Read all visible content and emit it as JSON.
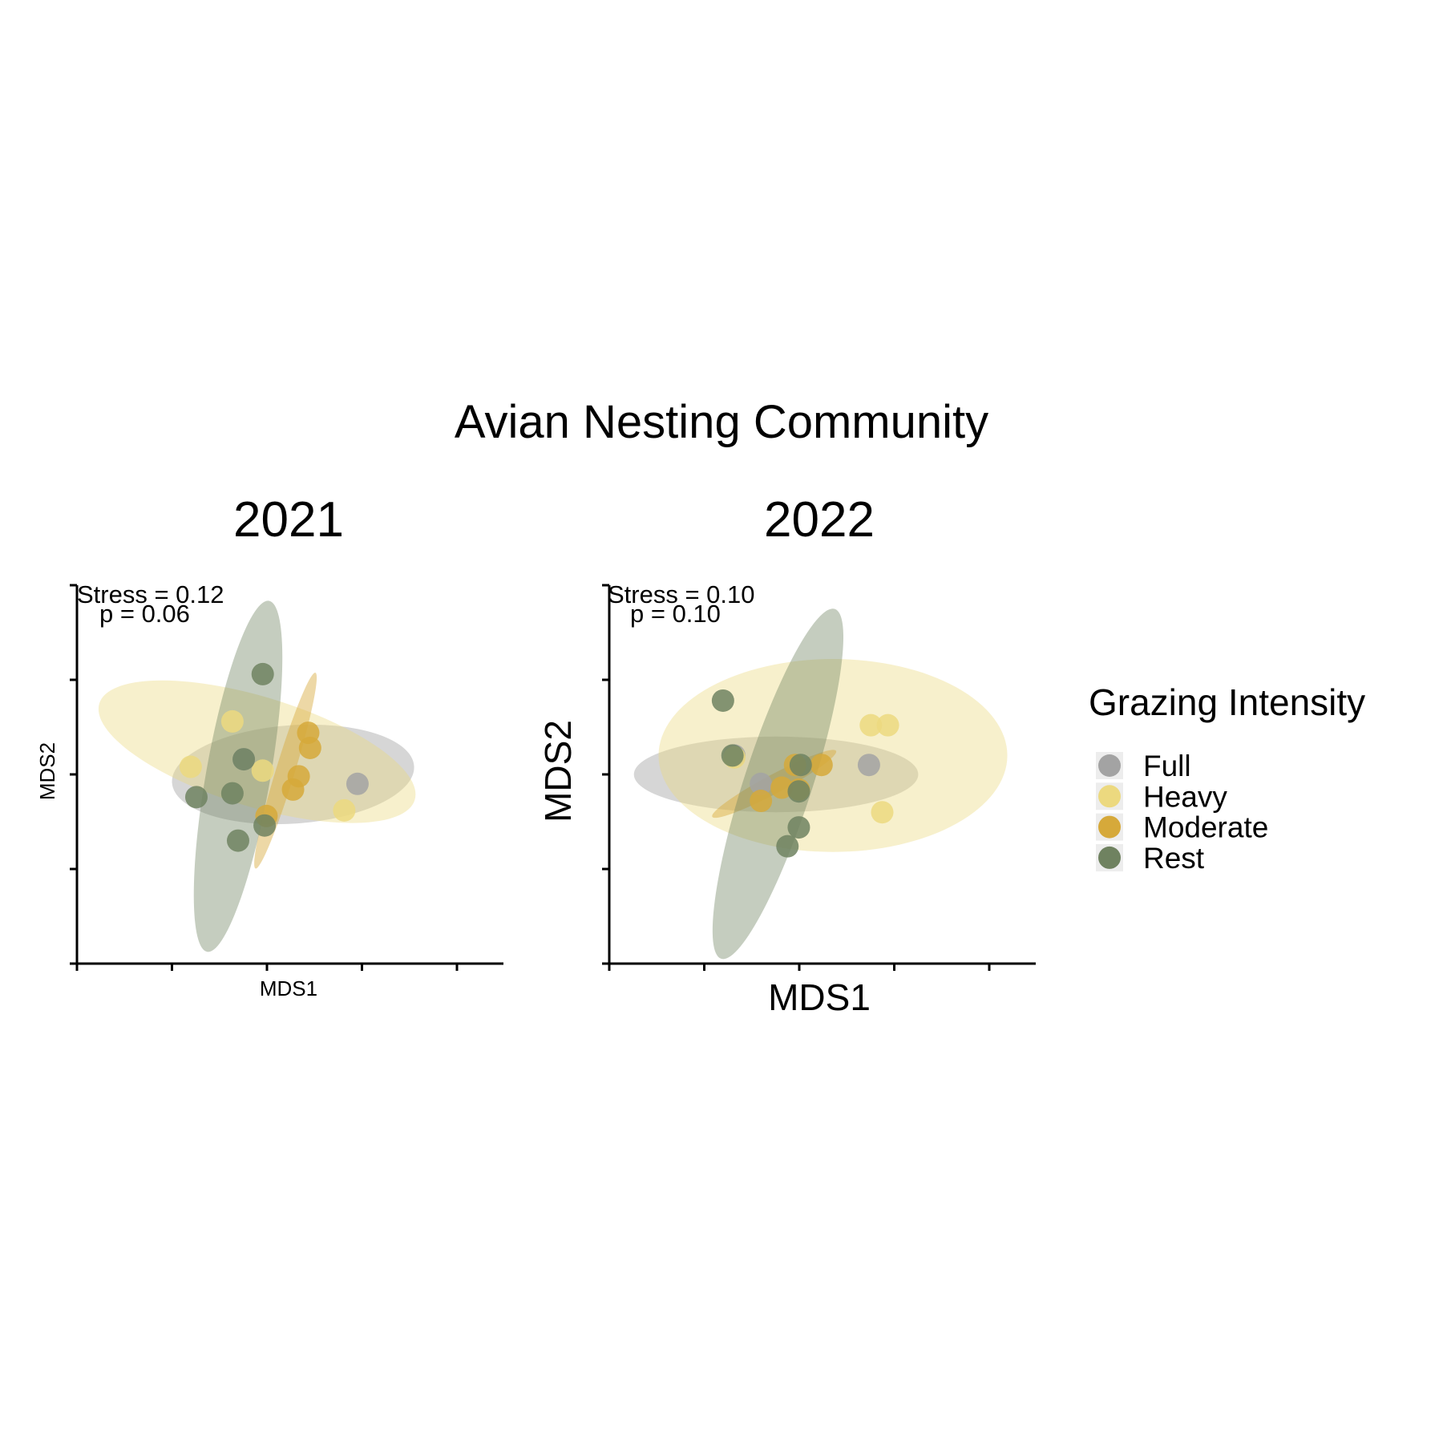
{
  "title": "Avian Nesting Community",
  "legend": {
    "title": "Grazing Intensity",
    "items": [
      {
        "label": "Full",
        "color": "#a3a3a3"
      },
      {
        "label": "Heavy",
        "color": "#ecd97f"
      },
      {
        "label": "Moderate",
        "color": "#d6a93a"
      },
      {
        "label": "Rest",
        "color": "#6f8260"
      }
    ]
  },
  "chart_data": [
    {
      "type": "scatter",
      "title": "2021",
      "xlabel": "MDS1",
      "ylabel": "MDS2",
      "xlim": [
        -1,
        1.25
      ],
      "ylim": [
        -1,
        1
      ],
      "annotations": [
        "Stress = 0.12",
        "p = 0.06"
      ],
      "series": [
        {
          "name": "Full",
          "points": [
            [
              -0.12,
              0.08
            ],
            [
              0.48,
              -0.05
            ]
          ],
          "ellipse": {
            "cx": 0.14,
            "cy": 0.0,
            "rx": 0.64,
            "ry": 0.26,
            "angle": -4
          }
        },
        {
          "name": "Heavy",
          "points": [
            [
              -0.18,
              0.28
            ],
            [
              -0.4,
              0.04
            ],
            [
              -0.02,
              0.02
            ],
            [
              0.41,
              -0.19
            ]
          ],
          "ellipse": {
            "cx": -0.05,
            "cy": 0.12,
            "rx": 0.87,
            "ry": 0.29,
            "angle": 17
          }
        },
        {
          "name": "Moderate",
          "points": [
            [
              0.22,
              0.22
            ],
            [
              0.23,
              0.14
            ],
            [
              0.17,
              -0.01
            ],
            [
              0.14,
              -0.08
            ],
            [
              0.0,
              -0.22
            ]
          ],
          "ellipse": {
            "cx": 0.1,
            "cy": 0.02,
            "rx": 0.54,
            "ry": 0.05,
            "angle": -73
          }
        },
        {
          "name": "Rest",
          "points": [
            [
              -0.02,
              0.53
            ],
            [
              -0.12,
              0.08
            ],
            [
              -0.37,
              -0.12
            ],
            [
              -0.18,
              -0.1
            ],
            [
              -0.01,
              -0.27
            ],
            [
              -0.15,
              -0.35
            ]
          ],
          "ellipse": {
            "cx": -0.15,
            "cy": -0.01,
            "rx": 0.94,
            "ry": 0.17,
            "angle": -80
          }
        }
      ]
    },
    {
      "type": "scatter",
      "title": "2022",
      "xlabel": "MDS1",
      "ylabel": "MDS2",
      "xlim": [
        -1,
        1.25
      ],
      "ylim": [
        -1,
        1
      ],
      "annotations": [
        "Stress = 0.10",
        "p = 0.10"
      ],
      "series": [
        {
          "name": "Full",
          "points": [
            [
              -0.34,
              0.1
            ],
            [
              -0.2,
              -0.05
            ],
            [
              0.37,
              0.05
            ]
          ],
          "ellipse": {
            "cx": -0.12,
            "cy": 0.0,
            "rx": 0.75,
            "ry": 0.2,
            "angle": 0
          }
        },
        {
          "name": "Heavy",
          "points": [
            [
              0.38,
              0.26
            ],
            [
              0.47,
              0.26
            ],
            [
              0.44,
              -0.2
            ],
            [
              -0.34,
              0.09
            ]
          ],
          "ellipse": {
            "cx": 0.18,
            "cy": 0.1,
            "rx": 0.92,
            "ry": 0.51,
            "angle": 0
          }
        },
        {
          "name": "Moderate",
          "points": [
            [
              0.12,
              0.05
            ],
            [
              -0.09,
              -0.07
            ],
            [
              -0.2,
              -0.14
            ],
            [
              -0.02,
              0.05
            ],
            [
              0.0,
              -0.08
            ]
          ],
          "ellipse": {
            "cx": -0.13,
            "cy": -0.05,
            "rx": 0.37,
            "ry": 0.05,
            "angle": -28
          }
        },
        {
          "name": "Rest",
          "points": [
            [
              -0.4,
              0.39
            ],
            [
              -0.35,
              0.1
            ],
            [
              0.01,
              0.05
            ],
            [
              0.0,
              -0.09
            ],
            [
              0.0,
              -0.28
            ],
            [
              -0.06,
              -0.38
            ]
          ],
          "ellipse": {
            "cx": -0.11,
            "cy": -0.05,
            "rx": 0.97,
            "ry": 0.18,
            "angle": -72
          }
        }
      ]
    }
  ]
}
